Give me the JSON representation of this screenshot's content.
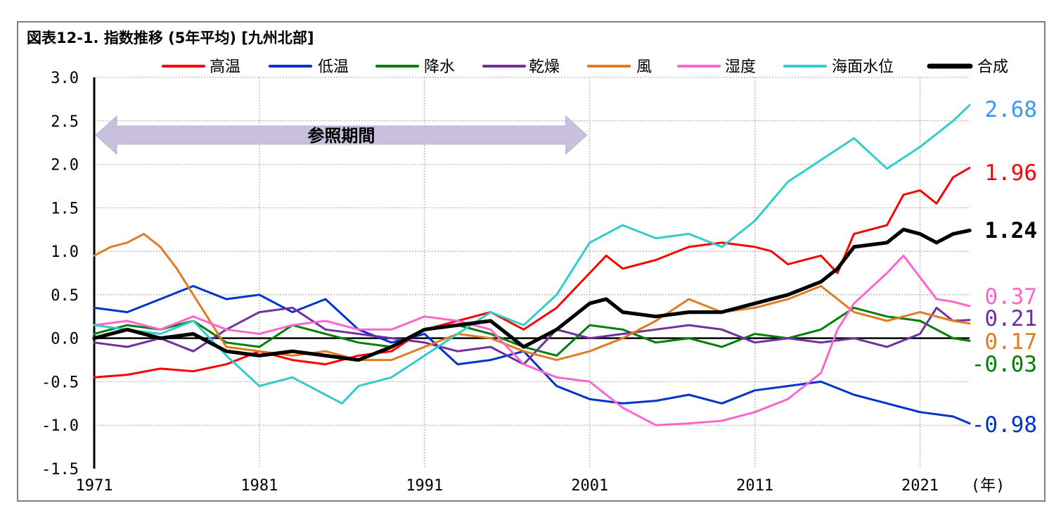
{
  "chart_data": {
    "type": "line",
    "title": "図表12-1. 指数推移 (5年平均) [九州北部]",
    "x_unit": "(年)",
    "x_ticks": [
      1971,
      1981,
      1991,
      2001,
      2011,
      2021
    ],
    "xlim": [
      1971,
      2024
    ],
    "ylim": [
      -1.5,
      3.0
    ],
    "y_ticks": [
      "3.0",
      "2.5",
      "2.0",
      "1.5",
      "1.0",
      "0.5",
      "0.0",
      "-0.5",
      "-1.0",
      "-1.5"
    ],
    "grid": true,
    "legend_position": "top",
    "annotation": {
      "text": "参照期間",
      "range": [
        1971,
        2001
      ]
    },
    "series": [
      {
        "name": "高温",
        "color": "#ff0000",
        "end_label": "1.96",
        "x": [
          1971,
          1973,
          1975,
          1977,
          1979,
          1981,
          1983,
          1985,
          1987,
          1989,
          1991,
          1993,
          1995,
          1997,
          1999,
          2001,
          2002,
          2003,
          2005,
          2007,
          2009,
          2011,
          2012,
          2013,
          2015,
          2016,
          2017,
          2019,
          2020,
          2021,
          2022,
          2023,
          2024
        ],
        "y": [
          -0.45,
          -0.42,
          -0.35,
          -0.38,
          -0.3,
          -0.15,
          -0.25,
          -0.3,
          -0.2,
          -0.15,
          0.1,
          0.2,
          0.3,
          0.1,
          0.35,
          0.75,
          0.95,
          0.8,
          0.9,
          1.05,
          1.1,
          1.05,
          1.0,
          0.85,
          0.95,
          0.75,
          1.2,
          1.3,
          1.65,
          1.7,
          1.55,
          1.85,
          1.96
        ]
      },
      {
        "name": "低温",
        "color": "#0033cc",
        "end_label": "-0.98",
        "x": [
          1971,
          1973,
          1975,
          1977,
          1979,
          1981,
          1983,
          1985,
          1987,
          1989,
          1991,
          1993,
          1995,
          1997,
          1999,
          2001,
          2003,
          2005,
          2007,
          2009,
          2011,
          2013,
          2015,
          2017,
          2019,
          2021,
          2023,
          2024
        ],
        "y": [
          0.35,
          0.3,
          0.45,
          0.6,
          0.45,
          0.5,
          0.3,
          0.45,
          0.1,
          -0.05,
          0.05,
          -0.3,
          -0.25,
          -0.15,
          -0.55,
          -0.7,
          -0.75,
          -0.72,
          -0.65,
          -0.75,
          -0.6,
          -0.55,
          -0.5,
          -0.65,
          -0.75,
          -0.85,
          -0.9,
          -0.98
        ]
      },
      {
        "name": "降水",
        "color": "#008000",
        "end_label": "-0.03",
        "x": [
          1971,
          1973,
          1975,
          1977,
          1979,
          1981,
          1983,
          1985,
          1987,
          1989,
          1991,
          1993,
          1995,
          1997,
          1999,
          2001,
          2003,
          2005,
          2007,
          2009,
          2011,
          2013,
          2015,
          2017,
          2019,
          2021,
          2023,
          2024
        ],
        "y": [
          0.05,
          0.15,
          0.1,
          0.2,
          -0.05,
          -0.1,
          0.15,
          0.05,
          -0.05,
          -0.1,
          0.1,
          0.15,
          0.05,
          -0.1,
          -0.2,
          0.15,
          0.1,
          -0.05,
          0.0,
          -0.1,
          0.05,
          0.0,
          0.1,
          0.35,
          0.25,
          0.2,
          0.0,
          -0.03
        ]
      },
      {
        "name": "乾燥",
        "color": "#7030a0",
        "end_label": "0.21",
        "x": [
          1971,
          1973,
          1975,
          1977,
          1979,
          1981,
          1983,
          1985,
          1987,
          1989,
          1991,
          1993,
          1995,
          1997,
          1999,
          2001,
          2003,
          2005,
          2007,
          2009,
          2011,
          2013,
          2015,
          2017,
          2019,
          2021,
          2022,
          2023,
          2024
        ],
        "y": [
          -0.05,
          -0.1,
          0.0,
          -0.15,
          0.1,
          0.3,
          0.35,
          0.1,
          0.05,
          0.0,
          -0.05,
          -0.15,
          -0.1,
          -0.3,
          0.1,
          0.0,
          0.05,
          0.1,
          0.15,
          0.1,
          -0.05,
          0.0,
          -0.05,
          0.0,
          -0.1,
          0.05,
          0.35,
          0.2,
          0.21
        ]
      },
      {
        "name": "風",
        "color": "#e07b20",
        "end_label": "0.17",
        "x": [
          1971,
          1972,
          1973,
          1974,
          1975,
          1976,
          1977,
          1979,
          1981,
          1983,
          1985,
          1987,
          1989,
          1991,
          1993,
          1995,
          1997,
          1999,
          2001,
          2003,
          2005,
          2007,
          2009,
          2011,
          2013,
          2015,
          2017,
          2019,
          2021,
          2023,
          2024
        ],
        "y": [
          0.95,
          1.05,
          1.1,
          1.2,
          1.05,
          0.8,
          0.5,
          -0.1,
          -0.15,
          -0.2,
          -0.15,
          -0.25,
          -0.25,
          -0.1,
          0.05,
          0.0,
          -0.15,
          -0.25,
          -0.15,
          0.0,
          0.2,
          0.45,
          0.3,
          0.35,
          0.45,
          0.6,
          0.3,
          0.2,
          0.3,
          0.2,
          0.17
        ]
      },
      {
        "name": "湿度",
        "color": "#ff66cc",
        "end_label": "0.37",
        "x": [
          1971,
          1973,
          1975,
          1977,
          1979,
          1981,
          1983,
          1985,
          1987,
          1989,
          1991,
          1993,
          1995,
          1997,
          1999,
          2001,
          2003,
          2005,
          2007,
          2009,
          2011,
          2013,
          2015,
          2016,
          2017,
          2019,
          2020,
          2021,
          2022,
          2023,
          2024
        ],
        "y": [
          0.15,
          0.2,
          0.1,
          0.25,
          0.1,
          0.05,
          0.15,
          0.2,
          0.1,
          0.1,
          0.25,
          0.2,
          0.1,
          -0.3,
          -0.45,
          -0.5,
          -0.8,
          -1.0,
          -0.98,
          -0.95,
          -0.85,
          -0.7,
          -0.4,
          0.1,
          0.4,
          0.75,
          0.95,
          0.7,
          0.45,
          0.42,
          0.37
        ]
      },
      {
        "name": "海面水位",
        "color": "#33cccc",
        "end_label": "2.68",
        "x": [
          1971,
          1973,
          1975,
          1977,
          1979,
          1981,
          1983,
          1985,
          1986,
          1987,
          1989,
          1991,
          1993,
          1995,
          1997,
          1999,
          2001,
          2003,
          2005,
          2007,
          2009,
          2011,
          2013,
          2015,
          2017,
          2019,
          2021,
          2023,
          2024
        ],
        "y": [
          0.15,
          0.1,
          0.05,
          0.2,
          -0.2,
          -0.55,
          -0.45,
          -0.65,
          -0.75,
          -0.55,
          -0.45,
          -0.2,
          0.05,
          0.3,
          0.15,
          0.5,
          1.1,
          1.3,
          1.15,
          1.2,
          1.05,
          1.35,
          1.8,
          2.05,
          2.3,
          1.95,
          2.2,
          2.5,
          2.68
        ]
      },
      {
        "name": "合成",
        "color": "#000000",
        "end_label": "1.24",
        "x": [
          1971,
          1973,
          1975,
          1977,
          1979,
          1981,
          1983,
          1985,
          1987,
          1989,
          1991,
          1993,
          1995,
          1997,
          1999,
          2001,
          2002,
          2003,
          2005,
          2007,
          2009,
          2011,
          2013,
          2015,
          2016,
          2017,
          2019,
          2020,
          2021,
          2022,
          2023,
          2024
        ],
        "y": [
          0.0,
          0.1,
          0.0,
          0.05,
          -0.15,
          -0.2,
          -0.15,
          -0.2,
          -0.25,
          -0.1,
          0.1,
          0.15,
          0.2,
          -0.1,
          0.1,
          0.4,
          0.45,
          0.3,
          0.25,
          0.3,
          0.3,
          0.4,
          0.5,
          0.65,
          0.8,
          1.05,
          1.1,
          1.25,
          1.2,
          1.1,
          1.2,
          1.24
        ]
      }
    ]
  }
}
